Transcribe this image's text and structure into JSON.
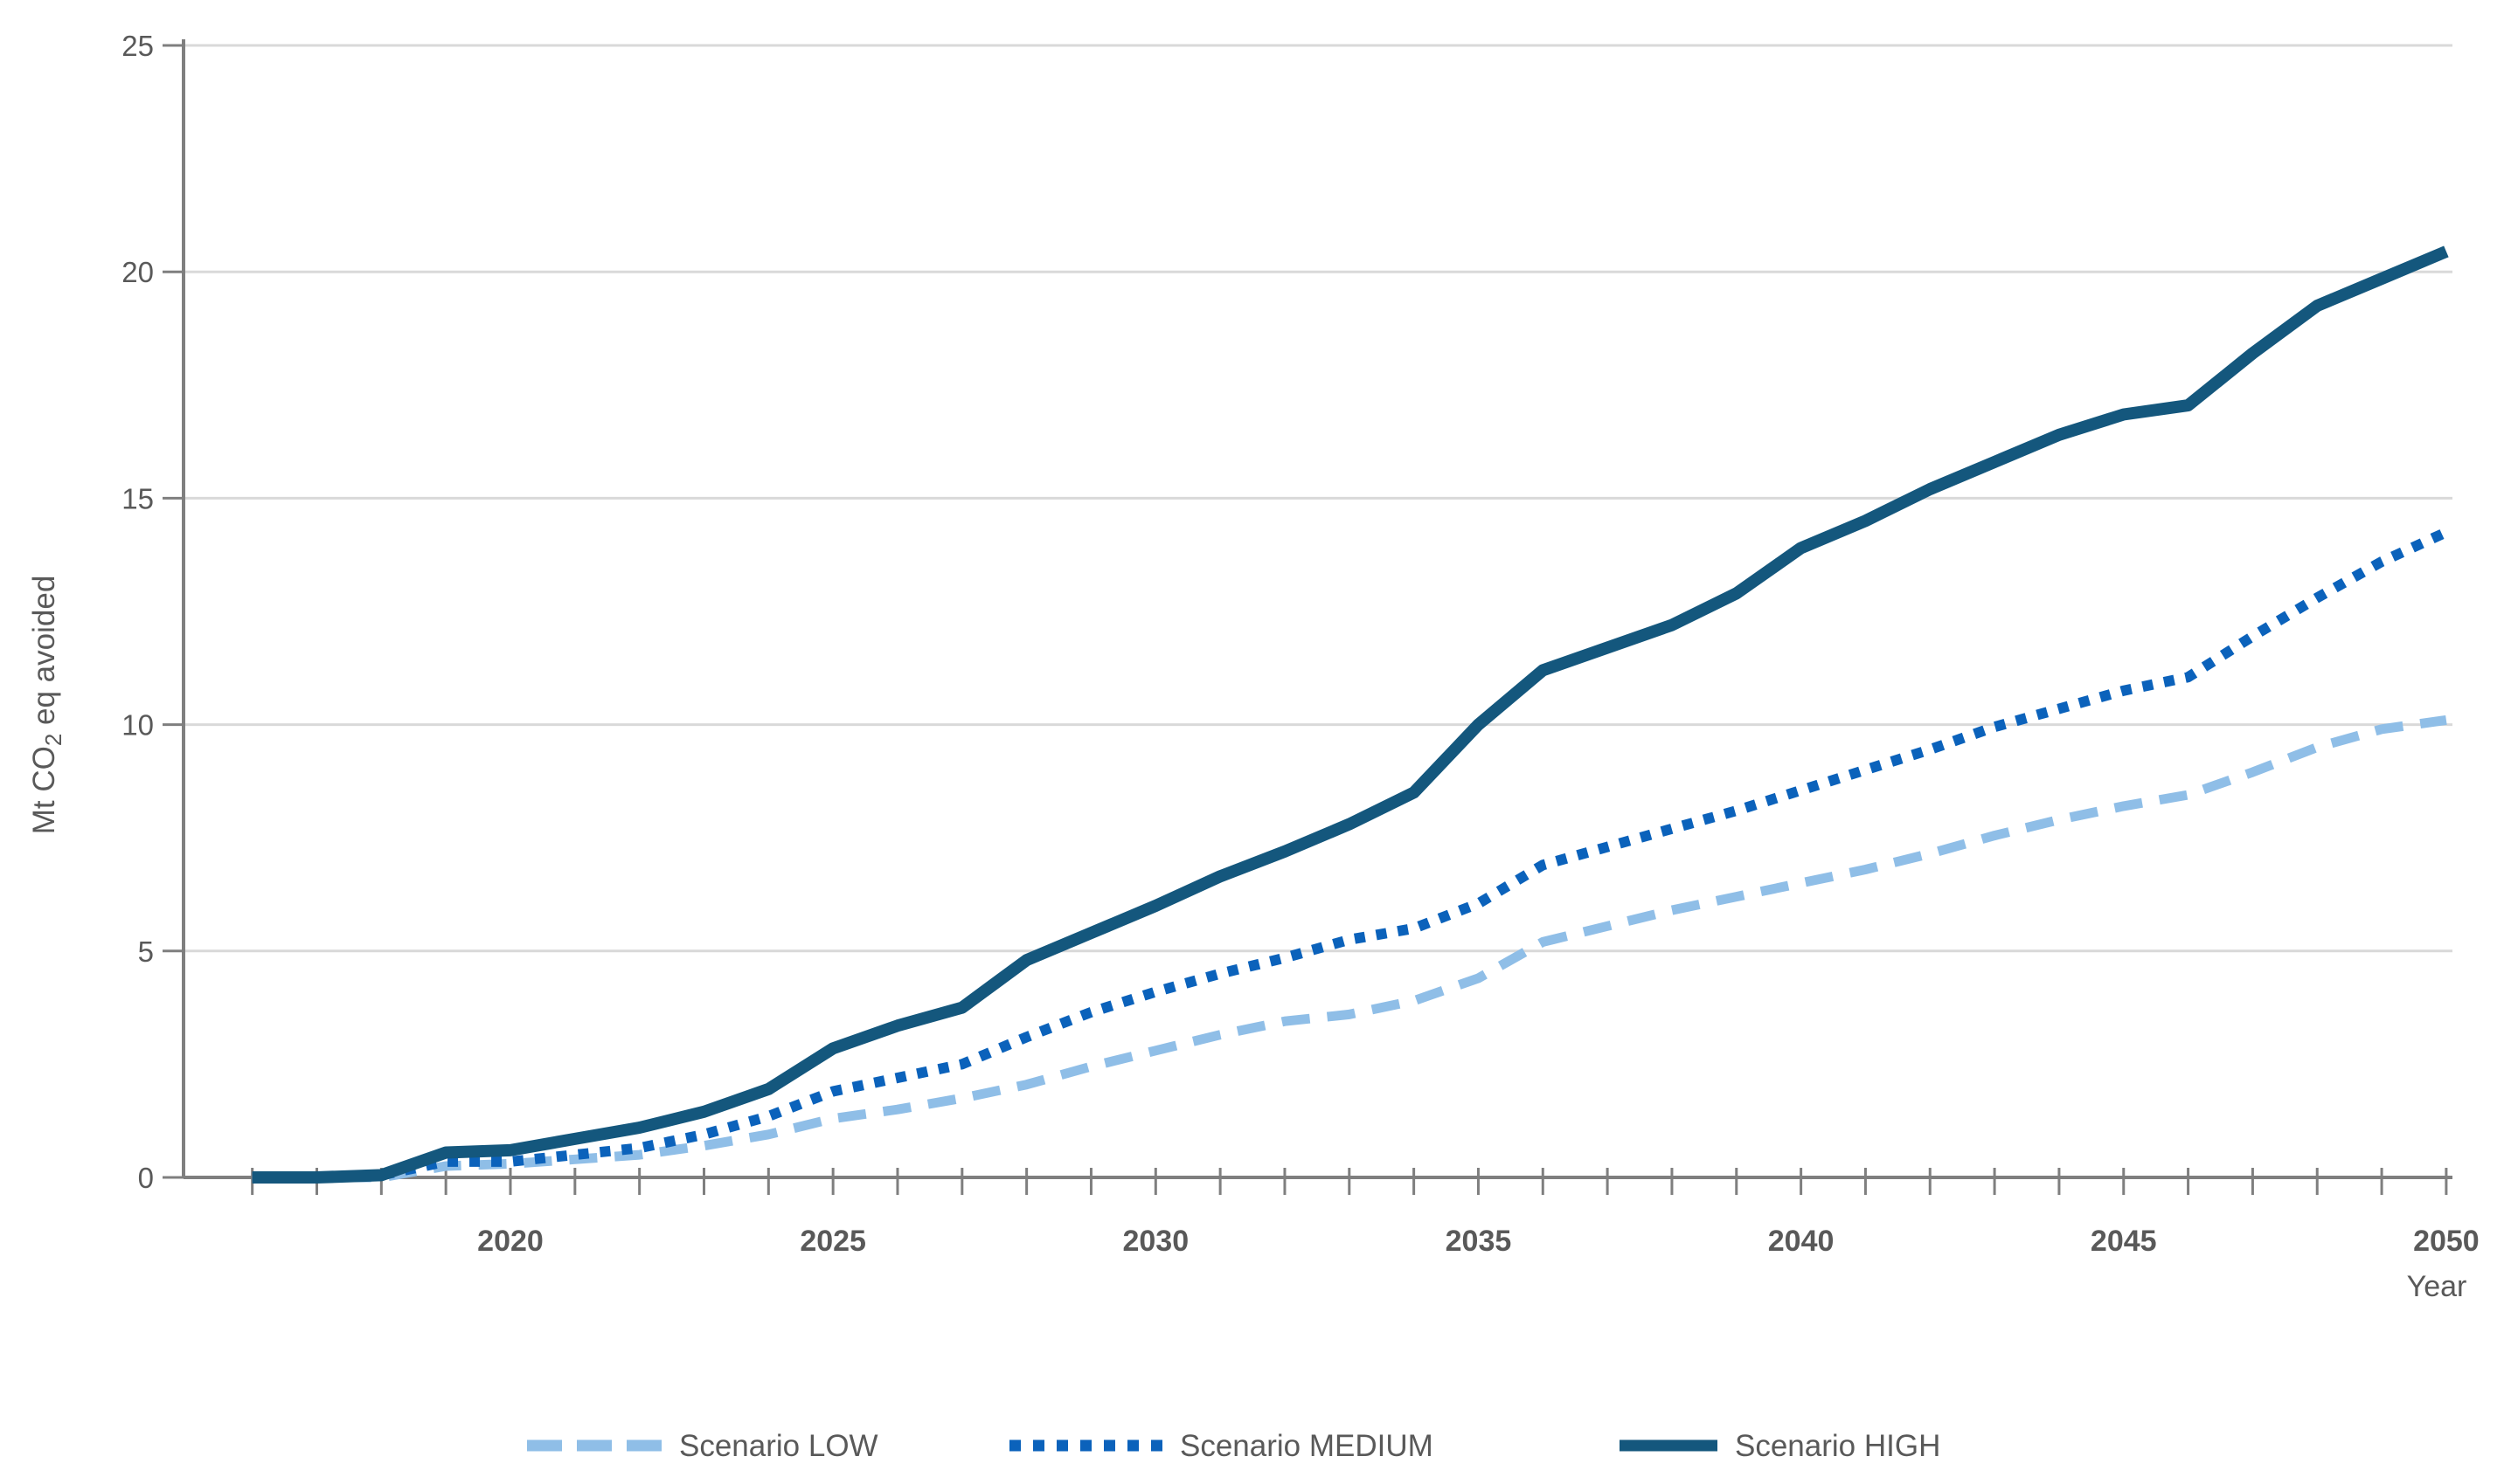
{
  "page": {
    "background": "#ffffff"
  },
  "chart_data": {
    "type": "line",
    "title": "",
    "xlabel": "Year",
    "ylabel": "Mt CO₂ eq avoided",
    "ylabel_parts": {
      "prefix": "Mt CO",
      "subscript": "2",
      "suffix": " eq avoided"
    },
    "xlim": [
      2015,
      2050
    ],
    "ylim": [
      0,
      25
    ],
    "grid": "horizontal",
    "legend_position": "bottom-center",
    "yticks": [
      {
        "value": 0,
        "label": "0"
      },
      {
        "value": 5,
        "label": "5"
      },
      {
        "value": 10,
        "label": "10"
      },
      {
        "value": 15,
        "label": "15"
      },
      {
        "value": 20,
        "label": "20"
      },
      {
        "value": 25,
        "label": "25"
      }
    ],
    "xticks_labeled": [
      {
        "value": 2020,
        "label": "2020"
      },
      {
        "value": 2025,
        "label": "2025"
      },
      {
        "value": 2030,
        "label": "2030"
      },
      {
        "value": 2035,
        "label": "2035"
      },
      {
        "value": 2040,
        "label": "2040"
      },
      {
        "value": 2045,
        "label": "2045"
      },
      {
        "value": 2050,
        "label": "2050"
      }
    ],
    "minor_xticks_every_year": true,
    "x": [
      2016,
      2017,
      2018,
      2019,
      2020,
      2021,
      2022,
      2023,
      2024,
      2025,
      2026,
      2027,
      2028,
      2029,
      2030,
      2031,
      2032,
      2033,
      2034,
      2035,
      2036,
      2037,
      2038,
      2039,
      2040,
      2041,
      2042,
      2043,
      2044,
      2045,
      2046,
      2047,
      2048,
      2049,
      2050
    ],
    "series": [
      {
        "name": "Scenario LOW",
        "style": "dashed",
        "color": "#8FBEE7",
        "values": [
          0,
          0,
          0,
          0.25,
          0.3,
          0.4,
          0.5,
          0.7,
          0.95,
          1.3,
          1.5,
          1.75,
          2.05,
          2.45,
          2.8,
          3.15,
          3.45,
          3.6,
          3.9,
          4.4,
          5.2,
          5.55,
          5.9,
          6.2,
          6.5,
          6.8,
          7.15,
          7.55,
          7.9,
          8.2,
          8.45,
          8.95,
          9.5,
          9.9,
          10.1
        ]
      },
      {
        "name": "Scenario MEDIUM",
        "style": "dotted",
        "color": "#0B62BB",
        "values": [
          0,
          0,
          0.05,
          0.35,
          0.35,
          0.5,
          0.65,
          0.95,
          1.35,
          1.9,
          2.2,
          2.5,
          3.1,
          3.65,
          4.1,
          4.5,
          4.85,
          5.25,
          5.5,
          6.05,
          6.9,
          7.3,
          7.7,
          8.1,
          8.55,
          9.0,
          9.45,
          9.95,
          10.35,
          10.75,
          11.05,
          11.95,
          12.8,
          13.6,
          14.25
        ]
      },
      {
        "name": "Scenario HIGH",
        "style": "solid",
        "color": "#14577D",
        "values": [
          0,
          0,
          0.05,
          0.55,
          0.6,
          0.85,
          1.1,
          1.45,
          1.95,
          2.85,
          3.35,
          3.75,
          4.8,
          5.4,
          6.0,
          6.65,
          7.2,
          7.8,
          8.5,
          10.0,
          11.2,
          11.7,
          12.2,
          12.9,
          13.9,
          14.5,
          15.2,
          15.8,
          16.4,
          16.85,
          17.05,
          18.2,
          19.25,
          19.85,
          20.45
        ]
      }
    ],
    "colors": {
      "gridline": "#D9D9D9",
      "axis": "#7F7F7F",
      "tick": "#7F7F7F",
      "tick_label": "#595959",
      "axis_title": "#595959",
      "legend_text": "#595959"
    }
  }
}
